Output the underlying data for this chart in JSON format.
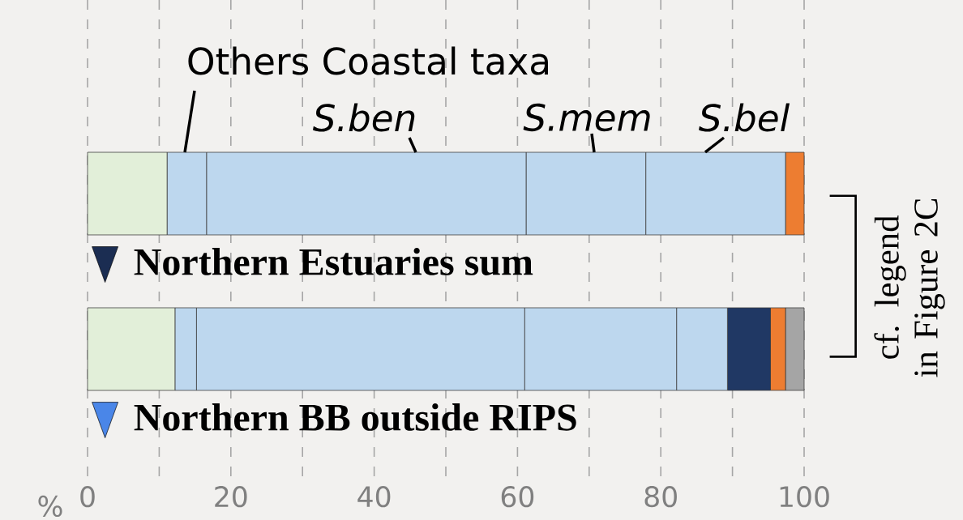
{
  "chart_data": {
    "type": "bar",
    "orientation": "horizontal",
    "stacked": true,
    "xlabel": "%",
    "categories": [
      "Northern Estuaries sum",
      "Northern BB outside RIPS"
    ],
    "series": [
      {
        "color": "#e2efd9",
        "values": [
          11.1,
          12.2
        ]
      },
      {
        "color": "#bdd7ee",
        "values": [
          5.5,
          3.0
        ]
      },
      {
        "color": "#bdd7ee",
        "values": [
          44.6,
          45.8
        ]
      },
      {
        "color": "#bdd7ee",
        "values": [
          16.7,
          21.2
        ]
      },
      {
        "color": "#bdd7ee",
        "values": [
          19.5,
          7.1
        ]
      },
      {
        "color": "#203864",
        "values": [
          0,
          6.0
        ]
      },
      {
        "color": "#ed7d31",
        "values": [
          2.6,
          2.1
        ]
      },
      {
        "color": "#a5a5a5",
        "values": [
          0,
          2.6
        ]
      }
    ],
    "xlim": [
      0,
      100
    ],
    "xticks": [
      0,
      {
        "value": 10,
        "label": null
      },
      20,
      {
        "value": 30,
        "label": null
      },
      40,
      {
        "value": 50,
        "label": null
      },
      60,
      {
        "value": 70,
        "label": null
      },
      80,
      {
        "value": 90,
        "label": null
      },
      100
    ],
    "grid": "x",
    "annotations": [
      "Others Coastal taxa",
      "S.ben",
      "S.mem",
      "S.bel",
      "cf. legend in Figure 2C"
    ]
  }
}
